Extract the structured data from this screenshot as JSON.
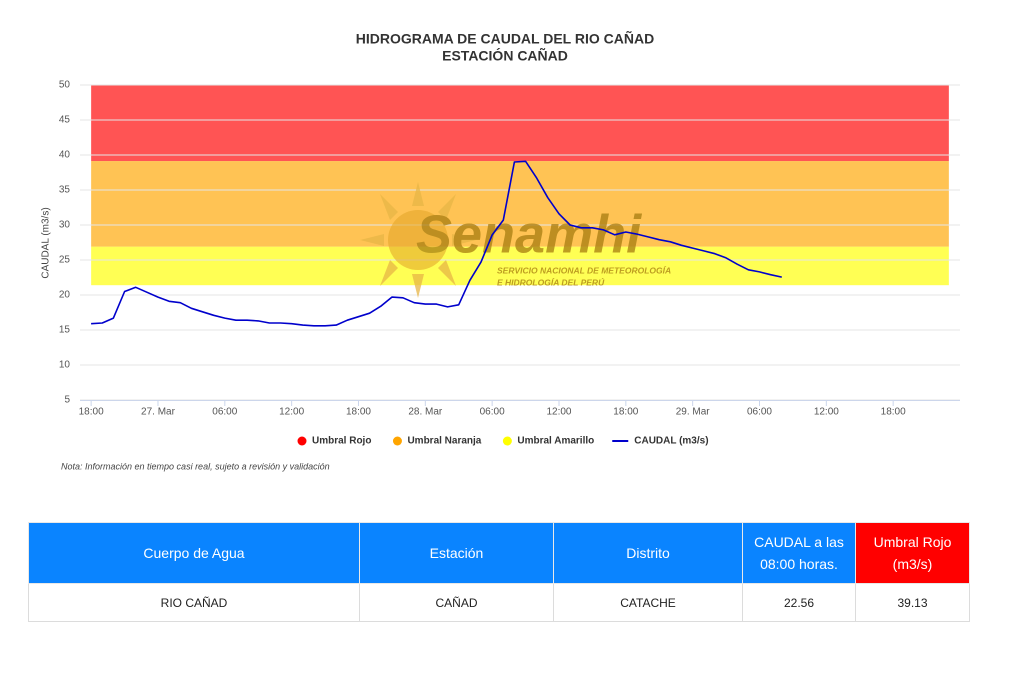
{
  "chart_data": {
    "type": "line",
    "title": "HIDROGRAMA DE CAUDAL DEL RIO CAÑAD",
    "subtitle": "ESTACIÓN CAÑAD",
    "y_label": "CAUDAL (m3/s)",
    "note": "Nota: Información en tiempo casi real, sujeto a revisión y validación",
    "watermark": {
      "name": "Senamhi",
      "line1": "SERVICIO NACIONAL DE METEOROLOGÍA",
      "line2": "E HIDROLOGÍA DEL PERÚ"
    },
    "ylim": [
      5,
      50
    ],
    "yticks": [
      5,
      10,
      15,
      20,
      25,
      30,
      35,
      40,
      45,
      50
    ],
    "grid": true,
    "xlim": [
      "26. Mar 17:00",
      "30. Mar 00:00"
    ],
    "xticks": [
      {
        "value": "26. Mar 18:00",
        "label": "18:00"
      },
      {
        "value": "27. Mar 00:00",
        "label": "27. Mar"
      },
      {
        "value": "27. Mar 06:00",
        "label": "06:00"
      },
      {
        "value": "27. Mar 12:00",
        "label": "12:00"
      },
      {
        "value": "27. Mar 18:00",
        "label": "18:00"
      },
      {
        "value": "28. Mar 00:00",
        "label": "28. Mar"
      },
      {
        "value": "28. Mar 06:00",
        "label": "06:00"
      },
      {
        "value": "28. Mar 12:00",
        "label": "12:00"
      },
      {
        "value": "28. Mar 18:00",
        "label": "18:00"
      },
      {
        "value": "29. Mar 00:00",
        "label": "29. Mar"
      },
      {
        "value": "29. Mar 06:00",
        "label": "06:00"
      },
      {
        "value": "29. Mar 12:00",
        "label": "12:00"
      },
      {
        "value": "29. Mar 18:00",
        "label": "18:00"
      }
    ],
    "band_opacity": 0.67,
    "bands": [
      {
        "name": "Umbral Rojo",
        "color": "#ff0000",
        "from": 39.13,
        "to": 50,
        "x": [
          "26. Mar 18:00",
          "29. Mar 23:00"
        ]
      },
      {
        "name": "Umbral Naranja",
        "color": "#ffa500",
        "from": 26.9,
        "to": 39.13,
        "x": [
          "26. Mar 18:00",
          "29. Mar 23:00"
        ]
      },
      {
        "name": "Umbral Amarillo",
        "color": "#ffff00",
        "from": 21.4,
        "to": 26.9,
        "x": [
          "26. Mar 18:00",
          "29. Mar 23:00"
        ]
      }
    ],
    "x": [
      "26. Mar 18:00",
      "26. Mar 19:00",
      "26. Mar 20:00",
      "26. Mar 21:00",
      "26. Mar 22:00",
      "26. Mar 23:00",
      "27. Mar 00:00",
      "27. Mar 01:00",
      "27. Mar 02:00",
      "27. Mar 03:00",
      "27. Mar 04:00",
      "27. Mar 05:00",
      "27. Mar 06:00",
      "27. Mar 07:00",
      "27. Mar 08:00",
      "27. Mar 09:00",
      "27. Mar 10:00",
      "27. Mar 11:00",
      "27. Mar 12:00",
      "27. Mar 13:00",
      "27. Mar 14:00",
      "27. Mar 15:00",
      "27. Mar 16:00",
      "27. Mar 17:00",
      "27. Mar 18:00",
      "27. Mar 19:00",
      "27. Mar 20:00",
      "27. Mar 21:00",
      "27. Mar 22:00",
      "27. Mar 23:00",
      "28. Mar 00:00",
      "28. Mar 01:00",
      "28. Mar 02:00",
      "28. Mar 03:00",
      "28. Mar 04:00",
      "28. Mar 05:00",
      "28. Mar 06:00",
      "28. Mar 07:00",
      "28. Mar 08:00",
      "28. Mar 09:00",
      "28. Mar 10:00",
      "28. Mar 11:00",
      "28. Mar 12:00",
      "28. Mar 13:00",
      "28. Mar 14:00",
      "28. Mar 15:00",
      "28. Mar 16:00",
      "28. Mar 17:00",
      "28. Mar 18:00",
      "28. Mar 19:00",
      "28. Mar 20:00",
      "28. Mar 21:00",
      "28. Mar 22:00",
      "28. Mar 23:00",
      "29. Mar 00:00",
      "29. Mar 01:00",
      "29. Mar 02:00",
      "29. Mar 03:00",
      "29. Mar 04:00",
      "29. Mar 05:00",
      "29. Mar 06:00",
      "29. Mar 07:00",
      "29. Mar 08:00"
    ],
    "series": [
      {
        "name": "CAUDAL (m3/s)",
        "color": "#0000cc",
        "values": [
          15.9,
          16.0,
          16.7,
          20.5,
          21.1,
          20.4,
          19.7,
          19.1,
          18.9,
          18.1,
          17.6,
          17.1,
          16.7,
          16.4,
          16.4,
          16.3,
          16.0,
          16.0,
          15.9,
          15.7,
          15.6,
          15.6,
          15.7,
          16.4,
          16.9,
          17.4,
          18.4,
          19.7,
          19.6,
          18.9,
          18.7,
          18.7,
          18.3,
          18.6,
          22.1,
          24.7,
          28.6,
          30.7,
          39.0,
          39.1,
          36.7,
          33.9,
          31.6,
          30.0,
          29.6,
          29.6,
          29.3,
          28.6,
          29.0,
          28.7,
          28.3,
          27.9,
          27.6,
          27.1,
          26.7,
          26.3,
          25.9,
          25.3,
          24.4,
          23.6,
          23.3,
          22.9,
          22.56
        ]
      }
    ]
  },
  "table": {
    "headers": [
      "Cuerpo de Agua",
      "Estación",
      "Distrito",
      "CAUDAL a las 08:00 horas.",
      "Umbral Rojo (m3/s)"
    ],
    "rows": [
      [
        "RIO CAÑAD",
        "CAÑAD",
        "CATACHE",
        "22.56",
        "39.13"
      ]
    ]
  }
}
